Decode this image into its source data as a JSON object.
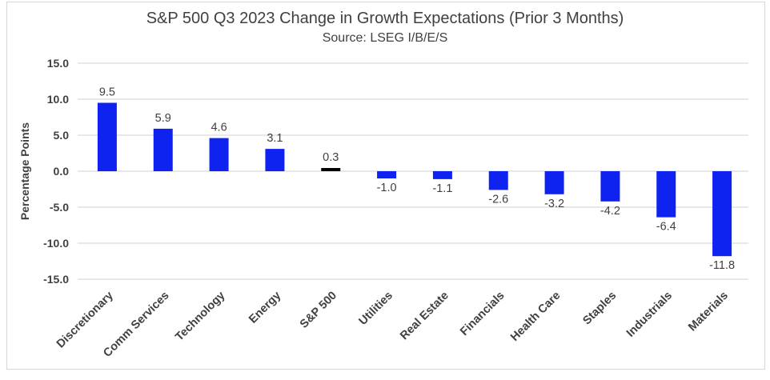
{
  "chart_data": {
    "type": "bar",
    "title": "S&P 500 Q3 2023 Change in Growth Expectations (Prior 3 Months)",
    "subtitle": "Source: LSEG I/B/E/S",
    "ylabel": "Percentage Points",
    "xlabel": "",
    "ylim": [
      -15,
      15
    ],
    "ytick_step": 5,
    "yticks": [
      15,
      10,
      5,
      0,
      -5,
      -10,
      -15
    ],
    "ytick_labels": [
      "15.0",
      "10.0",
      "5.0",
      "0.0",
      "-5.0",
      "-10.0",
      "-15.0"
    ],
    "grid": true,
    "legend": false,
    "categories": [
      "Discretionary",
      "Comm Services",
      "Technology",
      "Energy",
      "S&P 500",
      "Utilities",
      "Real Estate",
      "Financials",
      "Health Care",
      "Staples",
      "Industrials",
      "Materials"
    ],
    "values": [
      9.5,
      5.9,
      4.6,
      3.1,
      0.3,
      -1.0,
      -1.1,
      -2.6,
      -3.2,
      -4.2,
      -6.4,
      -11.8
    ],
    "value_labels": [
      "9.5",
      "5.9",
      "4.6",
      "3.1",
      "0.3",
      "-1.0",
      "-1.1",
      "-2.6",
      "-3.2",
      "-4.2",
      "-6.4",
      "-11.8"
    ],
    "highlight_category": "S&P 500",
    "colors": {
      "bar": "#0f23f0",
      "highlight_bar": "#000000",
      "text": "#404040",
      "gridline": "#d9d9d9",
      "frame_border": "#d6d6d6",
      "background": "#ffffff"
    }
  }
}
